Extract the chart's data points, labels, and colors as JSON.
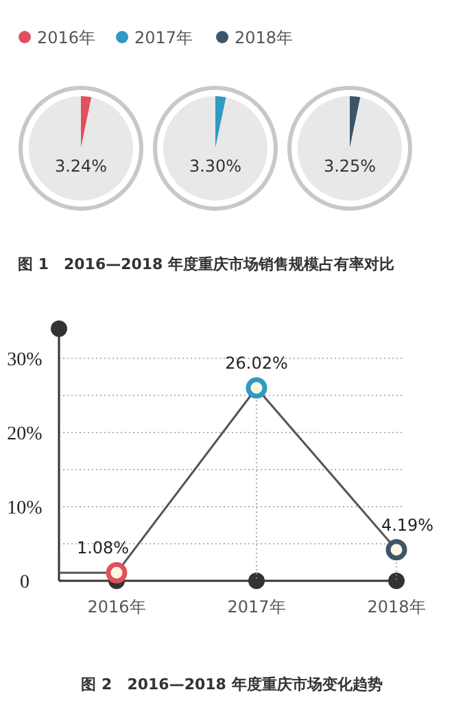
{
  "chart_data": [
    {
      "type": "pie",
      "categories": [
        "2016年",
        null
      ],
      "values": [
        3.24,
        96.76
      ],
      "colors": [
        "#e0505e",
        "#e8e8e8"
      ],
      "legend": "top",
      "annotations": [
        "3.24%",
        "图 1　2016—2018 年度重庆市场销售规模占有率对比"
      ]
    },
    {
      "type": "pie",
      "categories": [
        "2017年",
        null
      ],
      "values": [
        3.3,
        96.7
      ],
      "colors": [
        "#2f9ac4",
        "#e8e8e8"
      ],
      "legend": "top",
      "annotations": [
        "3.30%"
      ]
    },
    {
      "type": "pie",
      "categories": [
        "2018年",
        null
      ],
      "values": [
        3.25,
        96.75
      ],
      "colors": [
        "#3d5568",
        "#e8e8e8"
      ],
      "legend": "top",
      "annotations": [
        "3.25%"
      ]
    },
    {
      "type": "line",
      "categories": [
        "2016年",
        "2017年",
        "2018年"
      ],
      "series": [
        {
          "color": "#555555",
          "colors": [
            "#e0505e",
            "#2f9ac4",
            "#3d5568"
          ],
          "values": [
            1.08,
            26.02,
            4.19
          ],
          "value_labels": [
            "1.08%",
            "26.02%",
            "4.19%"
          ]
        }
      ],
      "ylim": [
        0,
        34
      ],
      "yticks": [
        0,
        {
          "value": 5,
          "label": null
        },
        {
          "value": 10,
          "label": "10%"
        },
        {
          "value": 15,
          "label": null
        },
        {
          "value": 20,
          "label": "20%"
        },
        {
          "value": 25,
          "label": null
        },
        {
          "value": 30,
          "label": "30%"
        }
      ],
      "grid": true,
      "marker": "circle",
      "line_style": "solid",
      "annotations": [
        "图 2　2016—2018 年度重庆市场变化趋势"
      ]
    }
  ]
}
